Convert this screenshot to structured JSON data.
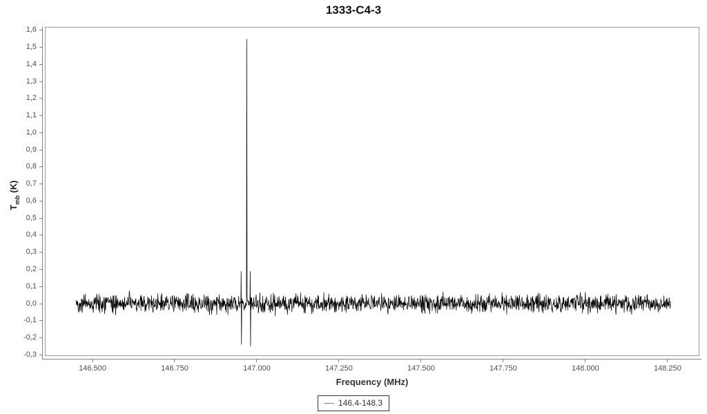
{
  "chart_data": {
    "type": "line",
    "title": "1333-C4-3",
    "xlabel": "Frequency (MHz)",
    "ylabel": "T_mb (K)",
    "ylabel_parts": {
      "main": "T",
      "sub": "mb",
      "unit": " (K)"
    },
    "legend_label": "146.4-148.3",
    "line_color": "#000000",
    "axis_color": "#808080",
    "x_range": [
      146.355,
      148.347
    ],
    "y_range": [
      -0.307,
      1.62
    ],
    "x_ticks": [
      {
        "value": 146.5,
        "label": "146.500"
      },
      {
        "value": 146.75,
        "label": "146.750"
      },
      {
        "value": 147.0,
        "label": "147.000"
      },
      {
        "value": 147.25,
        "label": "147.250"
      },
      {
        "value": 147.5,
        "label": "147.500"
      },
      {
        "value": 147.75,
        "label": "147.750"
      },
      {
        "value": 148.0,
        "label": "148.000"
      },
      {
        "value": 148.25,
        "label": "148.250"
      }
    ],
    "y_ticks": [
      {
        "value": -0.3,
        "label": "-0,3"
      },
      {
        "value": -0.2,
        "label": "-0,2"
      },
      {
        "value": -0.1,
        "label": "-0,1"
      },
      {
        "value": 0.0,
        "label": "0,0"
      },
      {
        "value": 0.1,
        "label": "0,1"
      },
      {
        "value": 0.2,
        "label": "0,2"
      },
      {
        "value": 0.3,
        "label": "0,3"
      },
      {
        "value": 0.4,
        "label": "0,4"
      },
      {
        "value": 0.5,
        "label": "0,5"
      },
      {
        "value": 0.6,
        "label": "0,6"
      },
      {
        "value": 0.7,
        "label": "0,7"
      },
      {
        "value": 0.8,
        "label": "0,8"
      },
      {
        "value": 0.9,
        "label": "0,9"
      },
      {
        "value": 1.0,
        "label": "1,0"
      },
      {
        "value": 1.1,
        "label": "1,1"
      },
      {
        "value": 1.2,
        "label": "1,2"
      },
      {
        "value": 1.3,
        "label": "1,3"
      },
      {
        "value": 1.4,
        "label": "1,4"
      },
      {
        "value": 1.5,
        "label": "1,5"
      },
      {
        "value": 1.6,
        "label": "1,6"
      }
    ],
    "noise": {
      "start": 146.45,
      "end": 148.26,
      "points": 1900,
      "amplitude": 0.053,
      "seed": 42
    },
    "features": [
      {
        "freq": 146.952,
        "peak": 0.19,
        "dip": -0.24
      },
      {
        "freq": 146.969,
        "peak": 1.55,
        "dip": null
      },
      {
        "freq": 146.98,
        "peak": 0.19,
        "dip": -0.25
      }
    ]
  }
}
